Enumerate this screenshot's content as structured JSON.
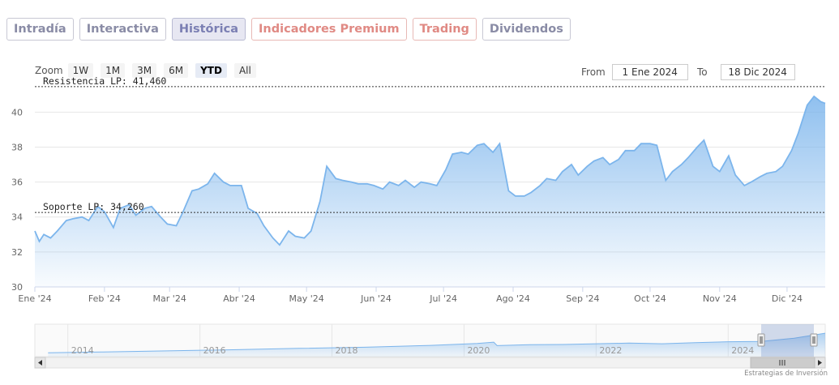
{
  "tabs": [
    {
      "label": "Intradía",
      "state": "normal"
    },
    {
      "label": "Interactiva",
      "state": "normal"
    },
    {
      "label": "Histórica",
      "state": "active"
    },
    {
      "label": "Indicadores Premium",
      "state": "red"
    },
    {
      "label": "Trading",
      "state": "red"
    },
    {
      "label": "Dividendos",
      "state": "normal"
    }
  ],
  "zoom": {
    "label": "Zoom",
    "buttons": [
      "1W",
      "1M",
      "3M",
      "6M",
      "YTD",
      "All"
    ],
    "selected": "YTD"
  },
  "range": {
    "from_label": "From",
    "from_value": "1 Ene 2024",
    "to_label": "To",
    "to_value": "18 Dic 2024"
  },
  "credit": "Estrategias de Inversión",
  "colors": {
    "line": "#7cb5ec",
    "area_top": "#7cb5ec",
    "reference": "#333333"
  },
  "chart_data": {
    "type": "area",
    "title": "",
    "xlabel": "",
    "ylabel": "",
    "ylim": [
      30,
      41.5
    ],
    "yticks": [
      30,
      32,
      34,
      36,
      38,
      40
    ],
    "xlim": [
      "2024-01-01",
      "2024-12-18"
    ],
    "xticks": [
      {
        "date": "2024-01-01",
        "label": "Ene '24"
      },
      {
        "date": "2024-02-01",
        "label": "Feb '24"
      },
      {
        "date": "2024-03-01",
        "label": "Mar '24"
      },
      {
        "date": "2024-04-01",
        "label": "Abr '24"
      },
      {
        "date": "2024-05-01",
        "label": "May '24"
      },
      {
        "date": "2024-06-01",
        "label": "Jun '24"
      },
      {
        "date": "2024-07-01",
        "label": "Jul '24"
      },
      {
        "date": "2024-08-01",
        "label": "Ago '24"
      },
      {
        "date": "2024-09-01",
        "label": "Sep '24"
      },
      {
        "date": "2024-10-01",
        "label": "Oct '24"
      },
      {
        "date": "2024-11-01",
        "label": "Nov '24"
      },
      {
        "date": "2024-12-01",
        "label": "Dic '24"
      }
    ],
    "grid": true,
    "reference_lines": [
      {
        "label": "Resistencia LP: 41,460",
        "value": 41.46
      },
      {
        "label": "Soporte LP: 34,260",
        "value": 34.26
      }
    ],
    "series": [
      {
        "x": [
          "2024-01-01",
          "2024-01-03",
          "2024-01-05",
          "2024-01-08",
          "2024-01-11",
          "2024-01-15",
          "2024-01-18",
          "2024-01-22",
          "2024-01-25",
          "2024-01-29",
          "2024-02-01",
          "2024-02-05",
          "2024-02-08",
          "2024-02-12",
          "2024-02-15",
          "2024-02-19",
          "2024-02-22",
          "2024-02-26",
          "2024-02-29",
          "2024-03-04",
          "2024-03-07",
          "2024-03-11",
          "2024-03-14",
          "2024-03-18",
          "2024-03-21",
          "2024-03-25",
          "2024-03-28",
          "2024-04-02",
          "2024-04-05",
          "2024-04-09",
          "2024-04-12",
          "2024-04-16",
          "2024-04-19",
          "2024-04-23",
          "2024-04-26",
          "2024-04-30",
          "2024-05-03",
          "2024-05-07",
          "2024-05-10",
          "2024-05-14",
          "2024-05-17",
          "2024-05-21",
          "2024-05-24",
          "2024-05-28",
          "2024-05-31",
          "2024-06-04",
          "2024-06-07",
          "2024-06-11",
          "2024-06-14",
          "2024-06-18",
          "2024-06-21",
          "2024-06-25",
          "2024-06-28",
          "2024-07-02",
          "2024-07-05",
          "2024-07-09",
          "2024-07-12",
          "2024-07-16",
          "2024-07-19",
          "2024-07-23",
          "2024-07-26",
          "2024-07-30",
          "2024-08-02",
          "2024-08-06",
          "2024-08-09",
          "2024-08-13",
          "2024-08-16",
          "2024-08-20",
          "2024-08-23",
          "2024-08-27",
          "2024-08-30",
          "2024-09-03",
          "2024-09-06",
          "2024-09-10",
          "2024-09-13",
          "2024-09-17",
          "2024-09-20",
          "2024-09-24",
          "2024-09-27",
          "2024-10-01",
          "2024-10-04",
          "2024-10-08",
          "2024-10-11",
          "2024-10-15",
          "2024-10-18",
          "2024-10-22",
          "2024-10-25",
          "2024-10-29",
          "2024-11-01",
          "2024-11-05",
          "2024-11-08",
          "2024-11-12",
          "2024-11-15",
          "2024-11-19",
          "2024-11-22",
          "2024-11-26",
          "2024-11-29",
          "2024-12-03",
          "2024-12-06",
          "2024-12-10",
          "2024-12-13",
          "2024-12-16",
          "2024-12-18"
        ],
        "y": [
          33.2,
          32.6,
          33.0,
          32.8,
          33.2,
          33.8,
          33.9,
          34.0,
          33.8,
          34.6,
          34.3,
          33.4,
          34.5,
          34.7,
          34.1,
          34.5,
          34.6,
          34.0,
          33.6,
          33.5,
          34.3,
          35.5,
          35.6,
          35.9,
          36.5,
          36.0,
          35.8,
          35.8,
          34.5,
          34.2,
          33.5,
          32.8,
          32.4,
          33.2,
          32.9,
          32.8,
          33.2,
          34.9,
          36.9,
          36.2,
          36.1,
          36.0,
          35.9,
          35.9,
          35.8,
          35.6,
          36.0,
          35.8,
          36.1,
          35.7,
          36.0,
          35.9,
          35.8,
          36.7,
          37.6,
          37.7,
          37.6,
          38.1,
          38.2,
          37.7,
          38.2,
          35.5,
          35.2,
          35.2,
          35.4,
          35.8,
          36.2,
          36.1,
          36.6,
          37.0,
          36.4,
          36.9,
          37.2,
          37.4,
          37.0,
          37.3,
          37.8,
          37.8,
          38.2,
          38.2,
          38.1,
          36.1,
          36.6,
          37.0,
          37.4,
          38.0,
          38.4,
          36.9,
          36.6,
          37.5,
          36.4,
          35.8,
          36.0,
          36.3,
          36.5,
          36.6,
          36.9,
          37.8,
          38.8,
          40.4,
          40.9,
          40.6,
          40.5
        ]
      }
    ],
    "navigator": {
      "xticks": [
        "2014",
        "2016",
        "2018",
        "2020",
        "2022",
        "2024"
      ],
      "x": [
        2013.2,
        2014,
        2015,
        2016,
        2016.5,
        2017,
        2018,
        2019,
        2019.7,
        2019.95,
        2020.0,
        2020.5,
        2021,
        2021.5,
        2022,
        2022.5,
        2023,
        2023.5,
        2024,
        2024.5,
        2024.97
      ],
      "y": [
        30.0,
        30.3,
        30.8,
        31.3,
        31.6,
        31.9,
        32.4,
        33.2,
        34.0,
        34.6,
        33.1,
        33.5,
        33.6,
        33.9,
        34.2,
        33.9,
        34.4,
        34.8,
        34.9,
        36.3,
        38.5
      ]
    }
  }
}
